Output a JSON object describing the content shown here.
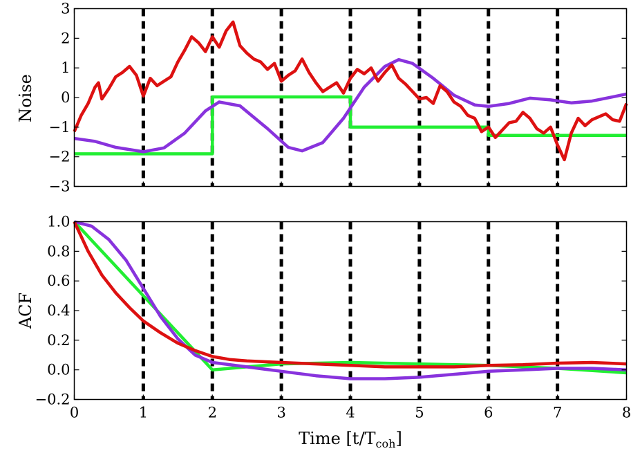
{
  "chart_data": [
    {
      "type": "line",
      "ylabel": "Noise",
      "xlim": [
        0,
        8
      ],
      "ylim": [
        -3,
        3
      ],
      "x_ticks": [
        "0",
        "1",
        "2",
        "3",
        "4",
        "5",
        "6",
        "7",
        "8"
      ],
      "y_ticks": [
        "−3",
        "−2",
        "−1",
        "0",
        "1",
        "2",
        "3"
      ],
      "y_tick_values": [
        -3,
        -2,
        -1,
        0,
        1,
        2,
        3
      ],
      "vlines": [
        1,
        2,
        3,
        4,
        5,
        6,
        7
      ],
      "series": [
        {
          "color": "#22ee33",
          "points": [
            [
              0,
              -1.9
            ],
            [
              2,
              -1.9
            ],
            [
              2,
              0.02
            ],
            [
              4,
              0.02
            ],
            [
              4,
              -1.0
            ],
            [
              6,
              -1.0
            ],
            [
              6,
              -1.28
            ],
            [
              8,
              -1.28
            ]
          ]
        },
        {
          "color": "#8833dd",
          "points": [
            [
              0,
              -1.38
            ],
            [
              0.3,
              -1.48
            ],
            [
              0.6,
              -1.68
            ],
            [
              1.0,
              -1.83
            ],
            [
              1.3,
              -1.7
            ],
            [
              1.6,
              -1.2
            ],
            [
              1.9,
              -0.45
            ],
            [
              2.1,
              -0.15
            ],
            [
              2.4,
              -0.28
            ],
            [
              2.8,
              -1.05
            ],
            [
              3.1,
              -1.68
            ],
            [
              3.3,
              -1.8
            ],
            [
              3.6,
              -1.52
            ],
            [
              3.9,
              -0.7
            ],
            [
              4.2,
              0.35
            ],
            [
              4.5,
              1.05
            ],
            [
              4.7,
              1.28
            ],
            [
              4.9,
              1.15
            ],
            [
              5.2,
              0.65
            ],
            [
              5.5,
              0.08
            ],
            [
              5.8,
              -0.25
            ],
            [
              6.0,
              -0.3
            ],
            [
              6.3,
              -0.2
            ],
            [
              6.6,
              -0.02
            ],
            [
              6.9,
              -0.08
            ],
            [
              7.2,
              -0.18
            ],
            [
              7.5,
              -0.12
            ],
            [
              7.8,
              0.02
            ],
            [
              8.0,
              0.12
            ]
          ]
        },
        {
          "color": "#dd1111",
          "points": [
            [
              0,
              -1.15
            ],
            [
              0.1,
              -0.6
            ],
            [
              0.2,
              -0.2
            ],
            [
              0.3,
              0.35
            ],
            [
              0.35,
              0.5
            ],
            [
              0.4,
              -0.05
            ],
            [
              0.5,
              0.3
            ],
            [
              0.6,
              0.7
            ],
            [
              0.7,
              0.85
            ],
            [
              0.8,
              1.05
            ],
            [
              0.9,
              0.75
            ],
            [
              1.0,
              0.05
            ],
            [
              1.1,
              0.65
            ],
            [
              1.2,
              0.4
            ],
            [
              1.3,
              0.55
            ],
            [
              1.4,
              0.7
            ],
            [
              1.5,
              1.2
            ],
            [
              1.6,
              1.6
            ],
            [
              1.7,
              2.05
            ],
            [
              1.8,
              1.85
            ],
            [
              1.9,
              1.55
            ],
            [
              2.0,
              2.05
            ],
            [
              2.1,
              1.7
            ],
            [
              2.2,
              2.25
            ],
            [
              2.3,
              2.55
            ],
            [
              2.4,
              1.75
            ],
            [
              2.5,
              1.5
            ],
            [
              2.6,
              1.3
            ],
            [
              2.7,
              1.2
            ],
            [
              2.8,
              0.95
            ],
            [
              2.9,
              1.15
            ],
            [
              3.0,
              0.55
            ],
            [
              3.1,
              0.75
            ],
            [
              3.2,
              0.9
            ],
            [
              3.3,
              1.3
            ],
            [
              3.4,
              0.85
            ],
            [
              3.5,
              0.5
            ],
            [
              3.6,
              0.2
            ],
            [
              3.7,
              0.35
            ],
            [
              3.8,
              0.5
            ],
            [
              3.9,
              0.15
            ],
            [
              4.0,
              0.65
            ],
            [
              4.1,
              0.95
            ],
            [
              4.2,
              0.8
            ],
            [
              4.3,
              1.0
            ],
            [
              4.4,
              0.55
            ],
            [
              4.5,
              0.85
            ],
            [
              4.6,
              1.1
            ],
            [
              4.7,
              0.65
            ],
            [
              4.8,
              0.45
            ],
            [
              4.9,
              0.2
            ],
            [
              5.0,
              -0.05
            ],
            [
              5.1,
              0.0
            ],
            [
              5.2,
              -0.2
            ],
            [
              5.3,
              0.4
            ],
            [
              5.4,
              0.2
            ],
            [
              5.5,
              -0.15
            ],
            [
              5.6,
              -0.3
            ],
            [
              5.7,
              -0.6
            ],
            [
              5.8,
              -0.7
            ],
            [
              5.9,
              -1.15
            ],
            [
              6.0,
              -1.0
            ],
            [
              6.1,
              -1.35
            ],
            [
              6.2,
              -1.1
            ],
            [
              6.3,
              -0.85
            ],
            [
              6.4,
              -0.8
            ],
            [
              6.5,
              -0.5
            ],
            [
              6.6,
              -0.7
            ],
            [
              6.7,
              -1.05
            ],
            [
              6.8,
              -1.2
            ],
            [
              6.9,
              -1.0
            ],
            [
              7.0,
              -1.6
            ],
            [
              7.1,
              -2.1
            ],
            [
              7.2,
              -1.2
            ],
            [
              7.3,
              -0.7
            ],
            [
              7.4,
              -0.95
            ],
            [
              7.5,
              -0.75
            ],
            [
              7.6,
              -0.65
            ],
            [
              7.7,
              -0.55
            ],
            [
              7.8,
              -0.75
            ],
            [
              7.9,
              -0.8
            ],
            [
              8.0,
              -0.2
            ]
          ]
        }
      ]
    },
    {
      "type": "line",
      "ylabel": "ACF",
      "xlabel": "Time [t/T",
      "xlabel_sub": "coh",
      "xlabel_close": "]",
      "xlim": [
        0,
        8
      ],
      "ylim": [
        -0.2,
        1.0
      ],
      "x_ticks": [
        "0",
        "1",
        "2",
        "3",
        "4",
        "5",
        "6",
        "7",
        "8"
      ],
      "y_ticks": [
        "−0.2",
        "0.0",
        "0.2",
        "0.4",
        "0.6",
        "0.8",
        "1.0"
      ],
      "y_tick_values": [
        -0.2,
        0.0,
        0.2,
        0.4,
        0.6,
        0.8,
        1.0
      ],
      "vlines": [
        1,
        2,
        3,
        4,
        5,
        6,
        7
      ],
      "series": [
        {
          "color": "#22ee33",
          "points": [
            [
              0,
              1.0
            ],
            [
              1,
              0.5
            ],
            [
              2,
              0.0
            ],
            [
              2.5,
              0.02
            ],
            [
              3,
              0.04
            ],
            [
              4,
              0.05
            ],
            [
              5,
              0.04
            ],
            [
              6,
              0.03
            ],
            [
              7,
              0.01
            ],
            [
              8,
              -0.02
            ]
          ]
        },
        {
          "color": "#8833dd",
          "points": [
            [
              0,
              1.0
            ],
            [
              0.25,
              0.97
            ],
            [
              0.5,
              0.88
            ],
            [
              0.75,
              0.74
            ],
            [
              1.0,
              0.55
            ],
            [
              1.25,
              0.36
            ],
            [
              1.5,
              0.21
            ],
            [
              1.75,
              0.1
            ],
            [
              2.0,
              0.05
            ],
            [
              2.5,
              0.02
            ],
            [
              3.0,
              -0.01
            ],
            [
              3.5,
              -0.04
            ],
            [
              4.0,
              -0.06
            ],
            [
              4.5,
              -0.06
            ],
            [
              5.0,
              -0.05
            ],
            [
              5.5,
              -0.03
            ],
            [
              6.0,
              -0.01
            ],
            [
              6.5,
              0.0
            ],
            [
              7.0,
              0.01
            ],
            [
              7.5,
              0.01
            ],
            [
              8.0,
              0.0
            ]
          ]
        },
        {
          "color": "#dd1111",
          "points": [
            [
              0,
              1.0
            ],
            [
              0.2,
              0.8
            ],
            [
              0.4,
              0.64
            ],
            [
              0.6,
              0.52
            ],
            [
              0.8,
              0.42
            ],
            [
              1.0,
              0.33
            ],
            [
              1.25,
              0.25
            ],
            [
              1.5,
              0.18
            ],
            [
              1.75,
              0.13
            ],
            [
              2.0,
              0.09
            ],
            [
              2.25,
              0.07
            ],
            [
              2.5,
              0.06
            ],
            [
              3.0,
              0.05
            ],
            [
              3.5,
              0.04
            ],
            [
              4.0,
              0.03
            ],
            [
              4.5,
              0.02
            ],
            [
              5.0,
              0.02
            ],
            [
              5.5,
              0.02
            ],
            [
              6.0,
              0.03
            ],
            [
              6.5,
              0.035
            ],
            [
              7.0,
              0.045
            ],
            [
              7.5,
              0.05
            ],
            [
              8.0,
              0.04
            ]
          ]
        }
      ]
    }
  ]
}
